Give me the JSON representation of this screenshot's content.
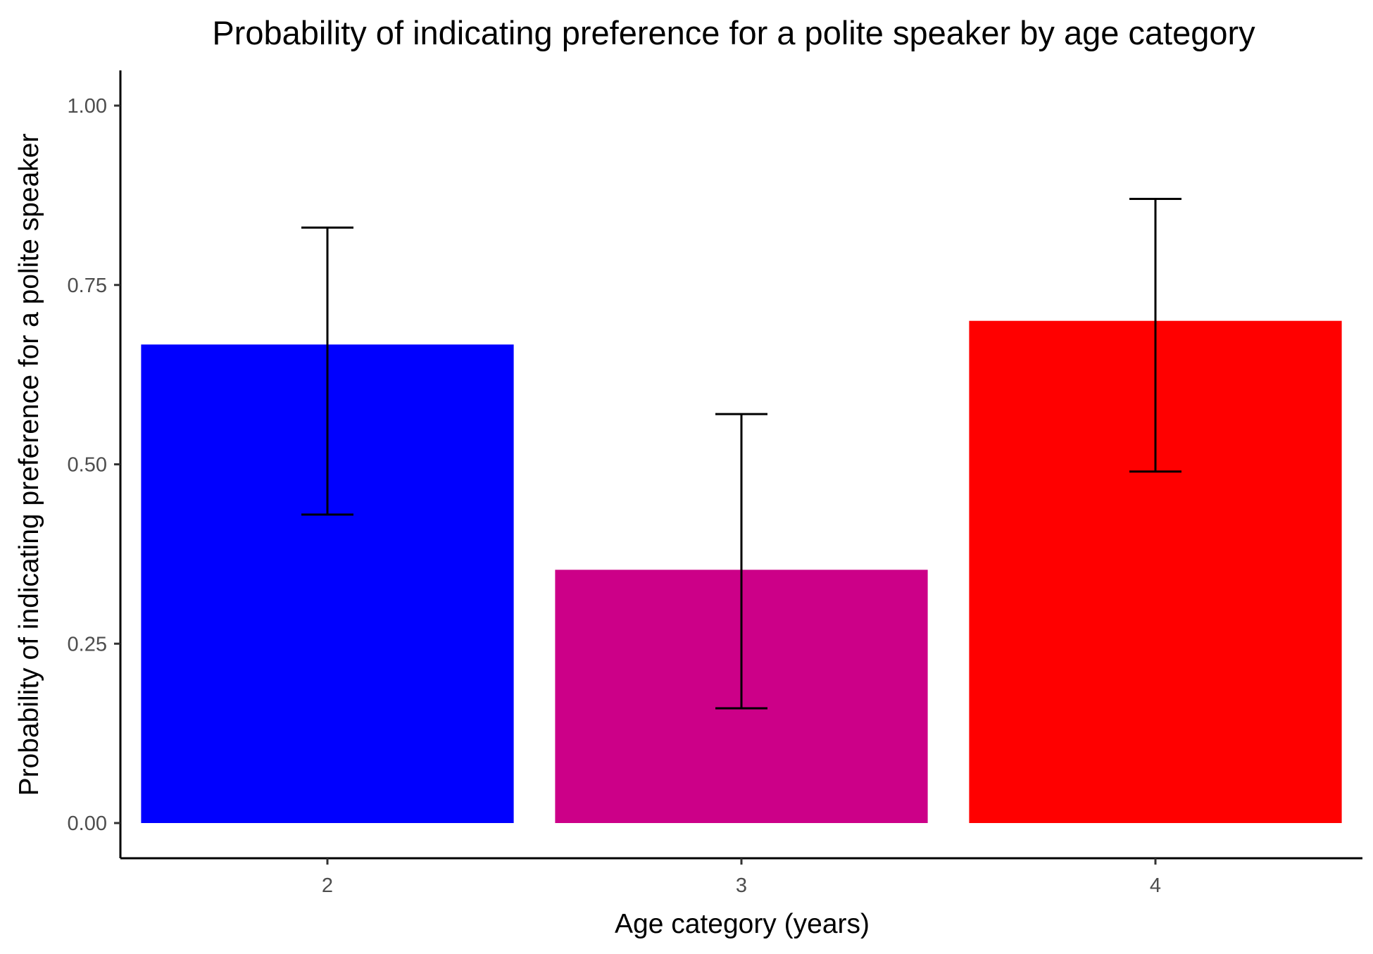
{
  "chart_data": {
    "type": "bar",
    "title": "Probability of indicating preference for a polite speaker by age category",
    "xlabel": "Age category (years)",
    "ylabel": "Probability of indicating preference for a polite speaker",
    "categories": [
      "2",
      "3",
      "4"
    ],
    "values": [
      0.667,
      0.353,
      0.7
    ],
    "error_lower": [
      0.43,
      0.16,
      0.49
    ],
    "error_upper": [
      0.83,
      0.57,
      0.87
    ],
    "bar_colors": [
      "#0000FF",
      "#CC0088",
      "#FF0000"
    ],
    "ylim": [
      0,
      1.05
    ],
    "y_ticks": [
      0,
      0.25,
      0.5,
      0.75,
      1.0
    ],
    "y_tick_labels": [
      "0.00",
      "0.25",
      "0.50",
      "0.75",
      "1.00"
    ],
    "grid": false,
    "legend": "none"
  }
}
